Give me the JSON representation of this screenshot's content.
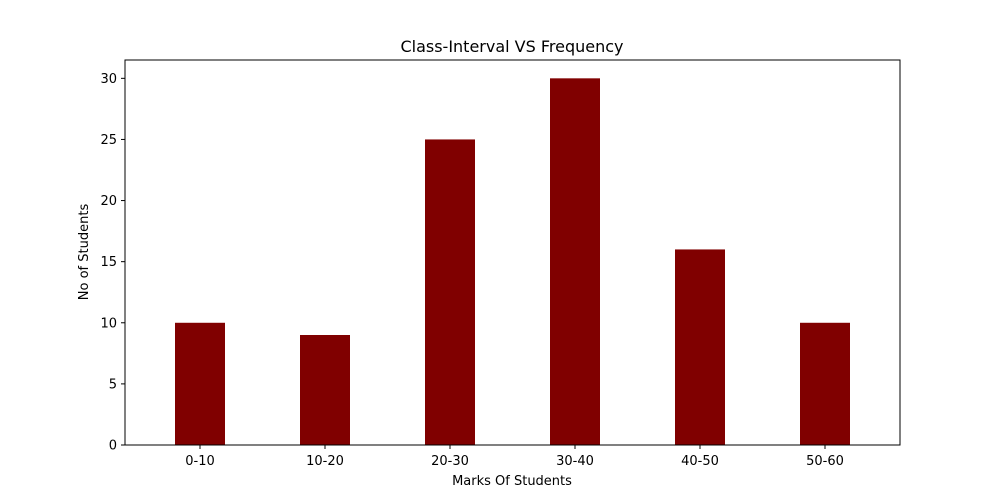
{
  "chart_data": {
    "type": "bar",
    "title": "Class-Interval VS Frequency",
    "xlabel": "Marks Of Students",
    "ylabel": "No of Students",
    "categories": [
      "0-10",
      "10-20",
      "20-30",
      "30-40",
      "40-50",
      "50-60"
    ],
    "values": [
      10,
      9,
      25,
      30,
      16,
      10
    ],
    "ylim": [
      0,
      31.5
    ],
    "yticks": [
      0,
      5,
      10,
      15,
      20,
      25,
      30
    ],
    "grid": false,
    "bar_color": "#800000"
  }
}
